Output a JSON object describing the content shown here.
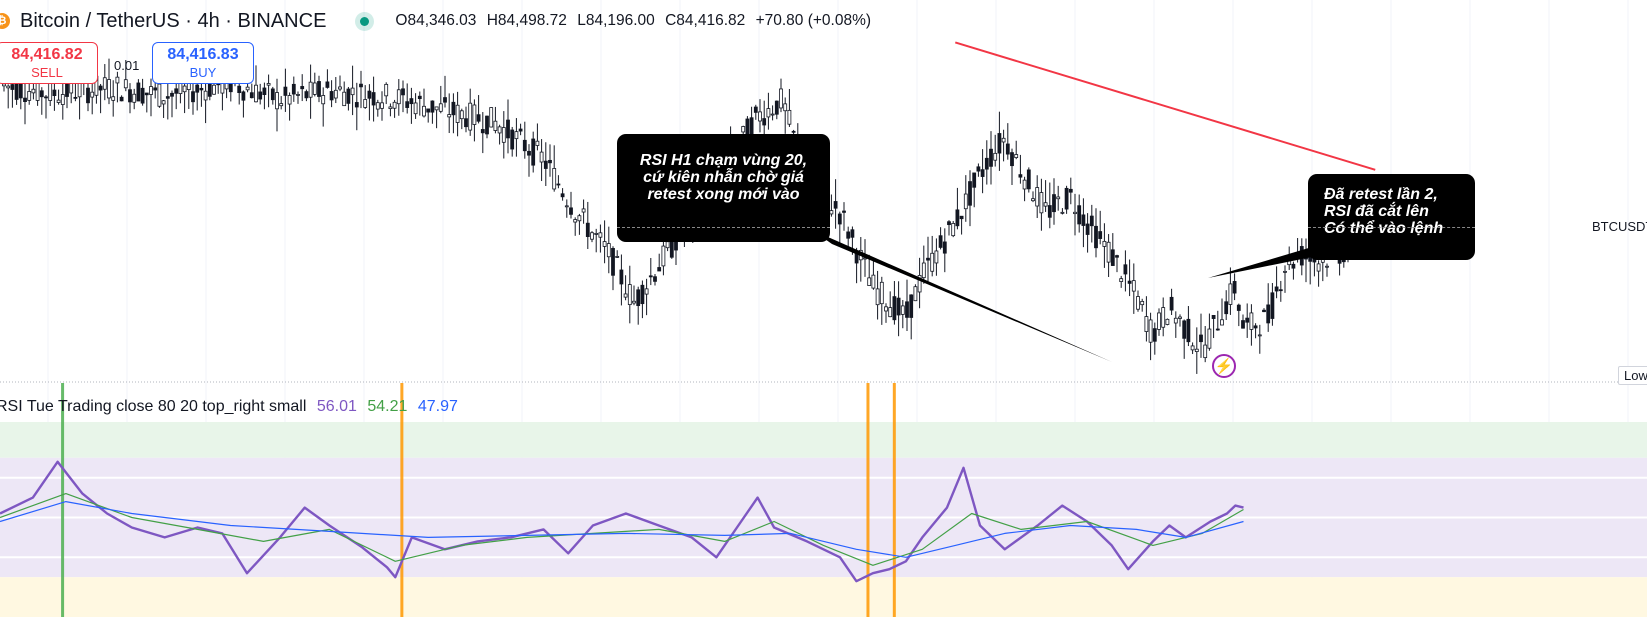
{
  "header": {
    "logo_glyph": "₿",
    "symbol": "Bitcoin / TetherUS · 4h · BINANCE",
    "open": "O84,346.03",
    "high": "H84,498.72",
    "low": "L84,196.00",
    "close": "C84,416.82",
    "change": "+70.80 (+0.08%)"
  },
  "trade": {
    "sell_price": "84,416.82",
    "sell_label": "SELL",
    "spread": "0.01",
    "buy_price": "84,416.83",
    "buy_label": "BUY"
  },
  "price_scale_tag": "BTCUSDT",
  "low_tag": "Low",
  "callouts": {
    "left_lines": [
      "RSI H1 chạm vùng 20,",
      "cứ kiên nhẫn chờ giá",
      "retest xong mới vào"
    ],
    "right_lines": [
      "Đã retest lần 2,",
      "RSI đã cắt lên",
      "Có thể vào lệnh"
    ]
  },
  "rsi_legend": {
    "title": "RSI Tue Trading close 80 20 top_right small",
    "v1": "56.01",
    "v2": "54.21",
    "v3": "47.97"
  },
  "colors": {
    "up": "#089981",
    "down": "#131722",
    "trendline": "#f23645",
    "rsi": "#7e57c2",
    "rsi_ma": "#43a047",
    "rsi_signal": "#2962ff",
    "band": "#ede7f6",
    "overbought": "#e8f5e9",
    "oversold": "#fff8e1",
    "marker_orange": "#ff9800",
    "marker_green": "#4caf50"
  },
  "icons": {
    "live": "live-dot-icon",
    "flash": "lightning-icon"
  },
  "chart_data": [
    {
      "type": "candlestick",
      "title": "Bitcoin / TetherUS · 4h · BINANCE",
      "price_path": [
        [
          0,
          84500
        ],
        [
          0.03,
          84420
        ],
        [
          0.07,
          84480
        ],
        [
          0.1,
          84400
        ],
        [
          0.14,
          84520
        ],
        [
          0.17,
          84360
        ],
        [
          0.2,
          84450
        ],
        [
          0.24,
          84380
        ],
        [
          0.27,
          84260
        ],
        [
          0.3,
          84150
        ],
        [
          0.33,
          83800
        ],
        [
          0.35,
          83300
        ],
        [
          0.37,
          82900
        ],
        [
          0.385,
          82450
        ],
        [
          0.4,
          82800
        ],
        [
          0.43,
          83500
        ],
        [
          0.46,
          84200
        ],
        [
          0.475,
          84350
        ],
        [
          0.49,
          83600
        ],
        [
          0.51,
          83300
        ],
        [
          0.53,
          82600
        ],
        [
          0.55,
          82300
        ],
        [
          0.56,
          82700
        ],
        [
          0.58,
          83200
        ],
        [
          0.6,
          83800
        ],
        [
          0.61,
          84000
        ],
        [
          0.62,
          83700
        ],
        [
          0.635,
          83300
        ],
        [
          0.65,
          83450
        ],
        [
          0.66,
          83200
        ],
        [
          0.675,
          82900
        ],
        [
          0.69,
          82500
        ],
        [
          0.7,
          82150
        ],
        [
          0.71,
          82400
        ],
        [
          0.73,
          82000
        ],
        [
          0.74,
          82300
        ],
        [
          0.75,
          82600
        ],
        [
          0.755,
          82200
        ],
        [
          0.77,
          82300
        ],
        [
          0.78,
          82800
        ],
        [
          0.79,
          82900
        ],
        [
          0.8,
          82850
        ],
        [
          0.81,
          82900
        ],
        [
          0.82,
          82950
        ]
      ],
      "trendline": {
        "from": [
          0.58,
          84900
        ],
        "to": [
          0.835,
          83700
        ]
      },
      "last_price": 84416.82
    },
    {
      "type": "line",
      "title": "RSI Tue Trading close 80 20 top_right small",
      "bands": {
        "overbought": 80,
        "oversold": 20,
        "upper_mid": 70,
        "lower_mid": 30
      },
      "ylim": [
        0,
        100
      ],
      "series": [
        {
          "name": "RSI",
          "points": [
            [
              0,
              52
            ],
            [
              0.02,
              60
            ],
            [
              0.035,
              78
            ],
            [
              0.05,
              62
            ],
            [
              0.065,
              52
            ],
            [
              0.08,
              45
            ],
            [
              0.1,
              40
            ],
            [
              0.12,
              45
            ],
            [
              0.135,
              42
            ],
            [
              0.15,
              22
            ],
            [
              0.17,
              40
            ],
            [
              0.185,
              55
            ],
            [
              0.2,
              46
            ],
            [
              0.22,
              35
            ],
            [
              0.235,
              25
            ],
            [
              0.24,
              20
            ],
            [
              0.25,
              40
            ],
            [
              0.27,
              34
            ],
            [
              0.29,
              38
            ],
            [
              0.31,
              40
            ],
            [
              0.33,
              44
            ],
            [
              0.345,
              32
            ],
            [
              0.36,
              46
            ],
            [
              0.38,
              52
            ],
            [
              0.4,
              46
            ],
            [
              0.42,
              40
            ],
            [
              0.435,
              30
            ],
            [
              0.45,
              48
            ],
            [
              0.46,
              60
            ],
            [
              0.47,
              45
            ],
            [
              0.49,
              38
            ],
            [
              0.51,
              30
            ],
            [
              0.52,
              18
            ],
            [
              0.53,
              22
            ],
            [
              0.54,
              24
            ],
            [
              0.55,
              28
            ],
            [
              0.56,
              40
            ],
            [
              0.575,
              55
            ],
            [
              0.585,
              75
            ],
            [
              0.595,
              46
            ],
            [
              0.61,
              34
            ],
            [
              0.63,
              46
            ],
            [
              0.645,
              56
            ],
            [
              0.66,
              48
            ],
            [
              0.675,
              36
            ],
            [
              0.685,
              24
            ],
            [
              0.7,
              38
            ],
            [
              0.71,
              46
            ],
            [
              0.72,
              40
            ],
            [
              0.735,
              48
            ],
            [
              0.745,
              52
            ],
            [
              0.75,
              56
            ],
            [
              0.755,
              55
            ]
          ]
        },
        {
          "name": "RSI MA",
          "points": [
            [
              0,
              50
            ],
            [
              0.04,
              62
            ],
            [
              0.08,
              50
            ],
            [
              0.12,
              44
            ],
            [
              0.16,
              38
            ],
            [
              0.2,
              44
            ],
            [
              0.24,
              28
            ],
            [
              0.28,
              36
            ],
            [
              0.32,
              40
            ],
            [
              0.36,
              42
            ],
            [
              0.4,
              44
            ],
            [
              0.44,
              38
            ],
            [
              0.47,
              48
            ],
            [
              0.5,
              36
            ],
            [
              0.53,
              26
            ],
            [
              0.56,
              34
            ],
            [
              0.59,
              52
            ],
            [
              0.62,
              44
            ],
            [
              0.66,
              48
            ],
            [
              0.7,
              36
            ],
            [
              0.73,
              42
            ],
            [
              0.755,
              54
            ]
          ]
        },
        {
          "name": "Signal",
          "points": [
            [
              0,
              48
            ],
            [
              0.04,
              58
            ],
            [
              0.08,
              52
            ],
            [
              0.14,
              46
            ],
            [
              0.2,
              43
            ],
            [
              0.26,
              40
            ],
            [
              0.32,
              41
            ],
            [
              0.38,
              42
            ],
            [
              0.44,
              41
            ],
            [
              0.48,
              42
            ],
            [
              0.52,
              34
            ],
            [
              0.55,
              30
            ],
            [
              0.58,
              36
            ],
            [
              0.61,
              42
            ],
            [
              0.65,
              46
            ],
            [
              0.69,
              44
            ],
            [
              0.72,
              40
            ],
            [
              0.755,
              48
            ]
          ]
        }
      ],
      "markers": [
        {
          "x": 0.038,
          "color": "green"
        },
        {
          "x": 0.244,
          "color": "orange"
        },
        {
          "x": 0.527,
          "color": "orange"
        },
        {
          "x": 0.543,
          "color": "orange"
        }
      ]
    }
  ]
}
